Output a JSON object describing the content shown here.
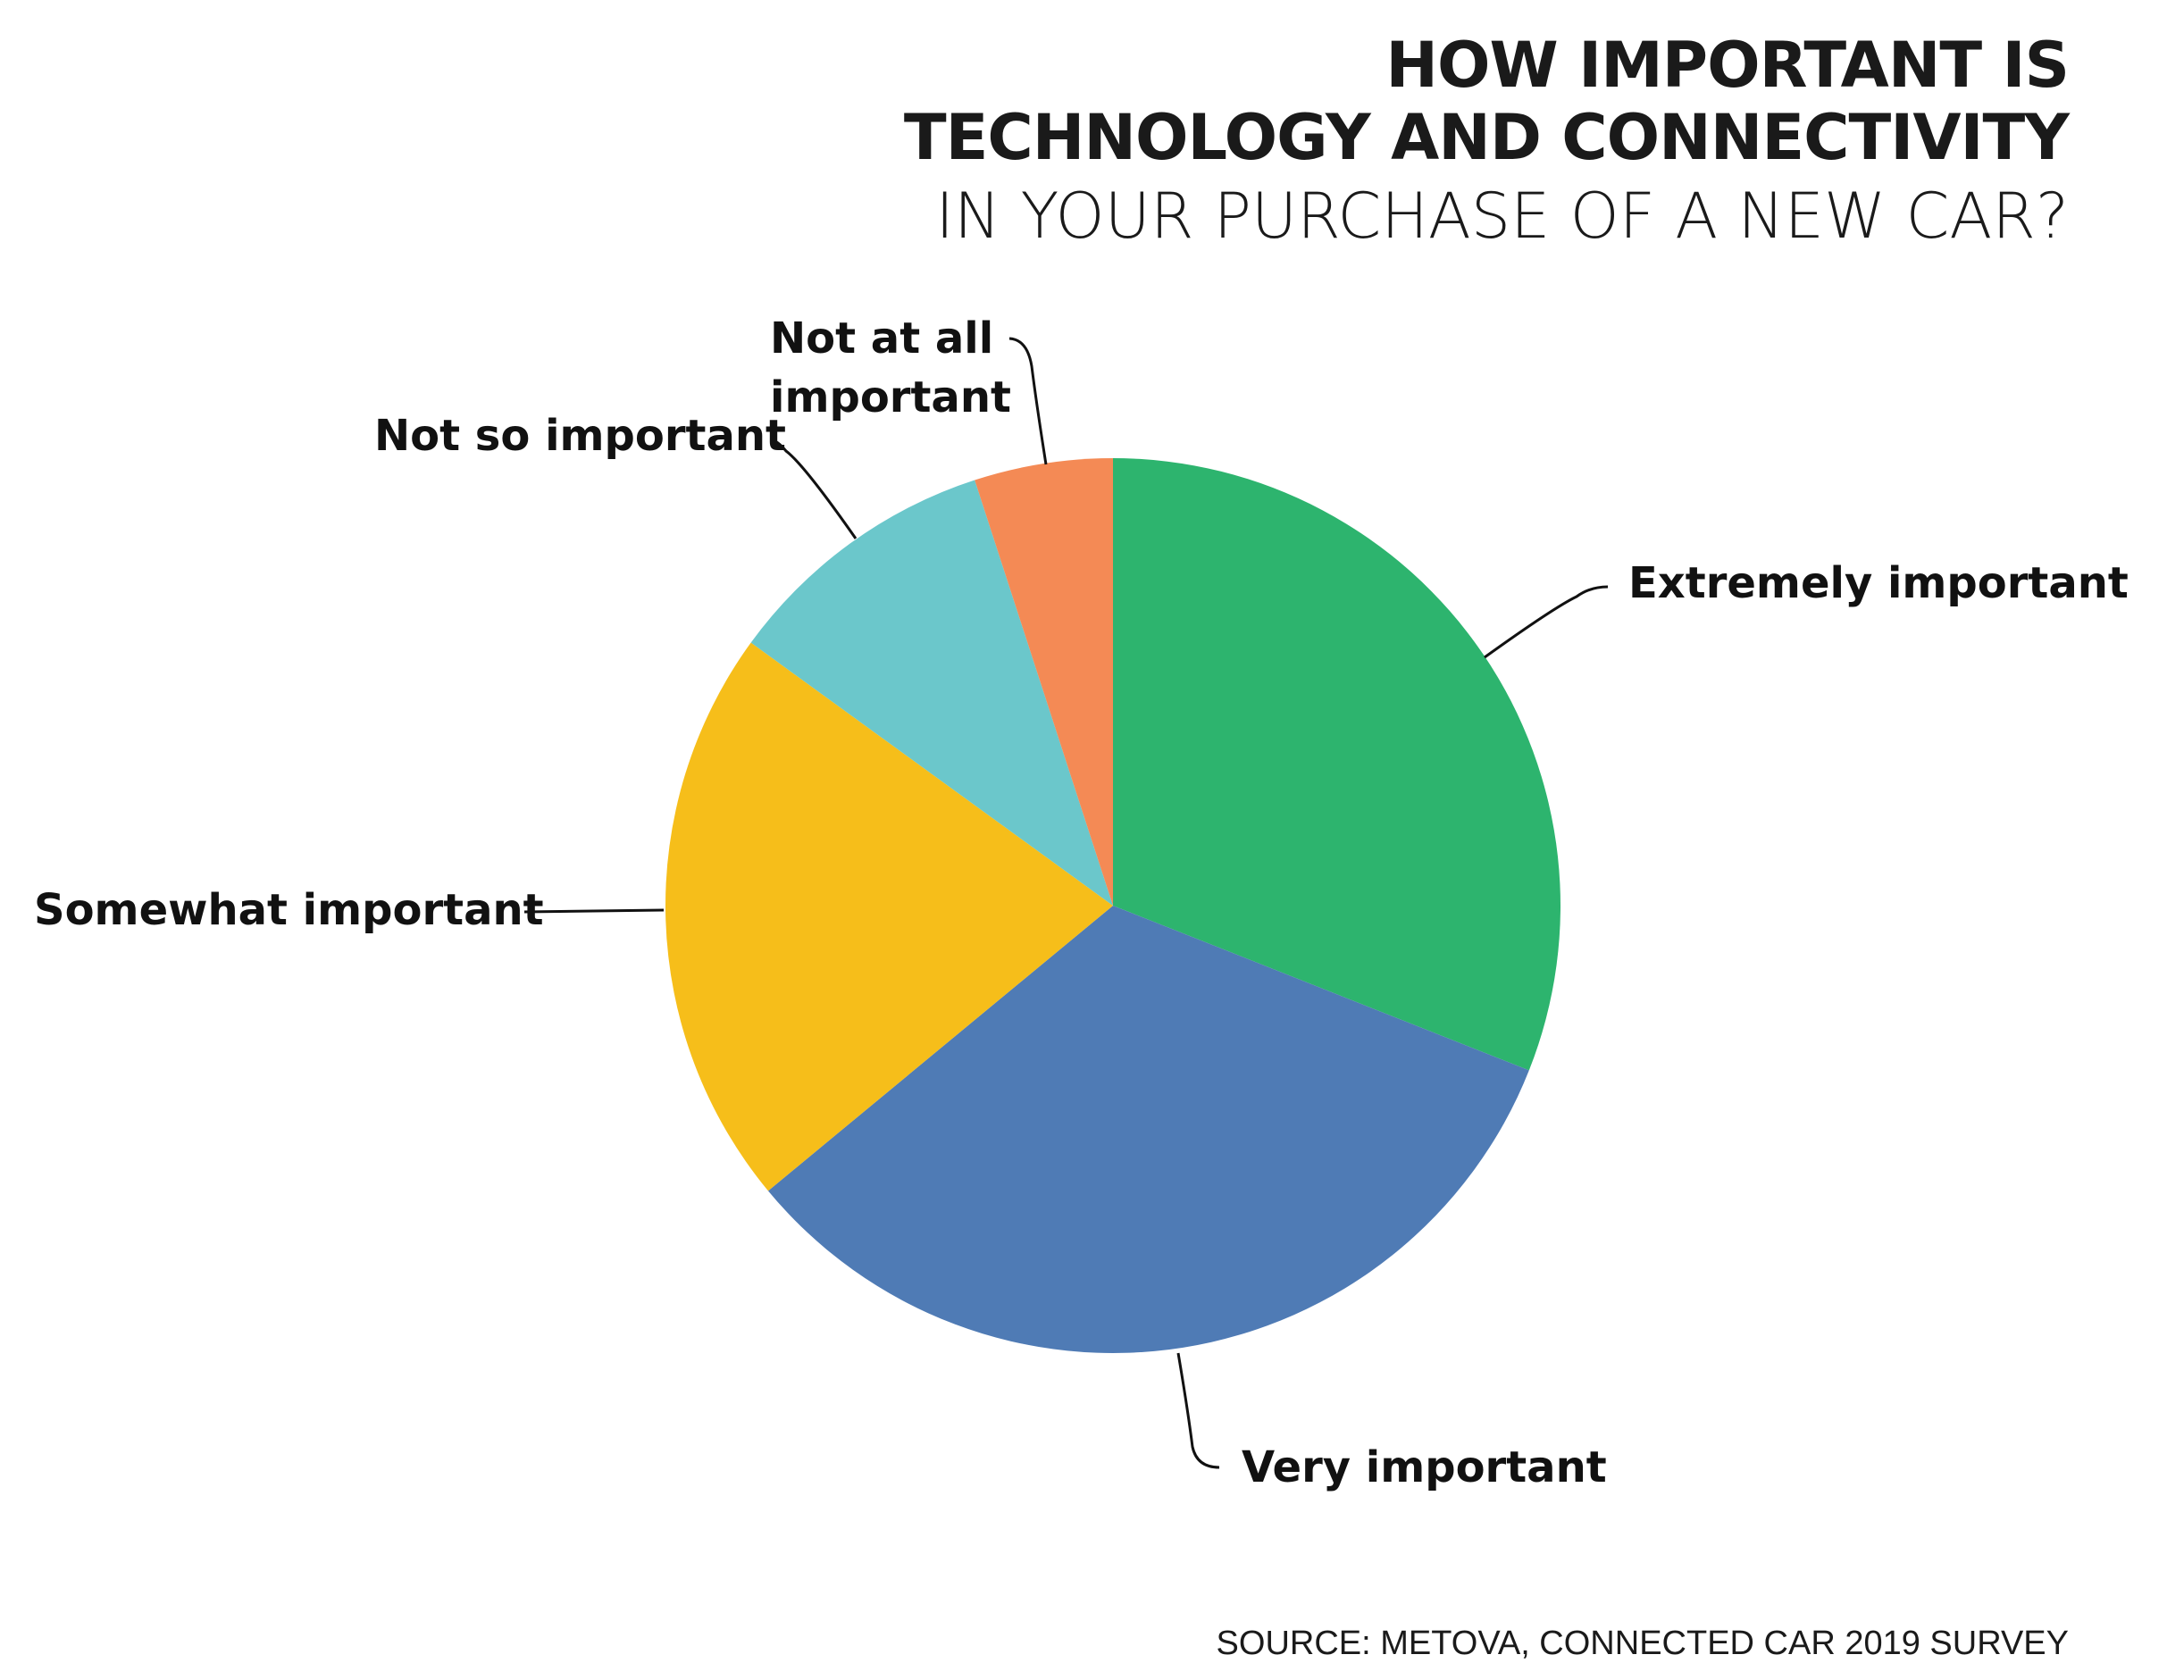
{
  "chart_data": {
    "type": "pie",
    "title": [
      "HOW IMPORTANT IS",
      "TECHNOLOGY AND CONNECTIVITY"
    ],
    "subtitle": "IN YOUR PURCHASE OF A NEW CAR?",
    "categories": [
      "Extremely important",
      "Very important",
      "Somewhat important",
      "Not so important",
      "Not at all important"
    ],
    "values": [
      31,
      33,
      21,
      10,
      5
    ],
    "colors": [
      "#2db46e",
      "#4f7bb5",
      "#f6be1a",
      "#6bc7cb",
      "#f48a55"
    ],
    "source": "SOURCE: METOVA, CONNECTED CAR 2019 SURVEY"
  }
}
